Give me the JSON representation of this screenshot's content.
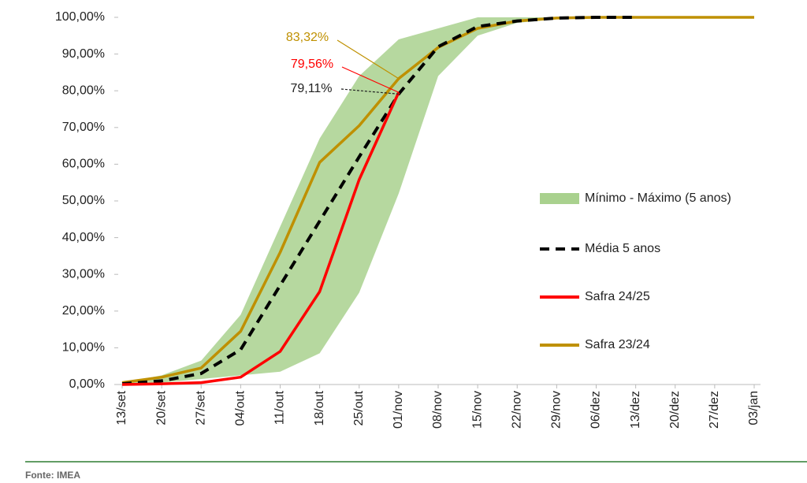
{
  "chart_data": {
    "type": "line",
    "categories": [
      "13/set",
      "20/set",
      "27/set",
      "04/out",
      "11/out",
      "18/out",
      "25/out",
      "01/nov",
      "08/nov",
      "15/nov",
      "22/nov",
      "29/nov",
      "06/dez",
      "13/dez",
      "20/dez",
      "27/dez",
      "03/jan"
    ],
    "ylim": [
      0,
      100
    ],
    "yticks": [
      {
        "value": 0,
        "label": "0,00%"
      },
      {
        "value": 10,
        "label": "10,00%"
      },
      {
        "value": 20,
        "label": "20,00%"
      },
      {
        "value": 30,
        "label": "30,00%"
      },
      {
        "value": 40,
        "label": "40,00%"
      },
      {
        "value": 50,
        "label": "50,00%"
      },
      {
        "value": 60,
        "label": "60,00%"
      },
      {
        "value": 70,
        "label": "70,00%"
      },
      {
        "value": 80,
        "label": "80,00%"
      },
      {
        "value": 90,
        "label": "90,00%"
      },
      {
        "value": 100,
        "label": "100,00%"
      }
    ],
    "band": {
      "name": "Mínimo - Máximo (5 anos)",
      "color": "#a9d18e",
      "low": [
        0,
        0.5,
        1.5,
        2.5,
        3.5,
        8.5,
        25,
        52,
        84,
        95,
        98.5,
        99.5,
        100,
        100,
        null,
        null,
        null
      ],
      "high": [
        0.5,
        2.5,
        6.5,
        19,
        43,
        67,
        84,
        94,
        97,
        100,
        100,
        100,
        100,
        100,
        null,
        null,
        null
      ]
    },
    "series": [
      {
        "name": "Média 5 anos",
        "color": "#000000",
        "dashed": true,
        "values": [
          0.2,
          1,
          3,
          9.5,
          27,
          44.5,
          62,
          79.11,
          92,
          97.5,
          99,
          99.8,
          100,
          100,
          null,
          null,
          null
        ],
        "value_labels": [
          null,
          null,
          null,
          null,
          null,
          null,
          null,
          "79,11%",
          null,
          null,
          null,
          null,
          null,
          null,
          null,
          null,
          null
        ]
      },
      {
        "name": "Safra 24/25",
        "color": "#ff0000",
        "values": [
          0,
          0.2,
          0.5,
          2,
          9,
          25.3,
          55.8,
          79.56,
          null,
          null,
          null,
          null,
          null,
          null,
          null,
          null,
          null
        ],
        "value_labels": [
          null,
          null,
          null,
          null,
          null,
          null,
          null,
          "79,56%",
          null,
          null,
          null,
          null,
          null,
          null,
          null,
          null,
          null
        ]
      },
      {
        "name": "Safra 23/24",
        "color": "#bf9000",
        "values": [
          0.5,
          2,
          4.5,
          14.5,
          36,
          60.5,
          70.5,
          83.32,
          91.8,
          97,
          99,
          99.8,
          100,
          100,
          100,
          100,
          100
        ],
        "value_labels": [
          null,
          null,
          null,
          null,
          null,
          null,
          null,
          "83,32%",
          null,
          null,
          null,
          null,
          null,
          null,
          null,
          null,
          null
        ]
      }
    ],
    "source": "Fonte: IMEA"
  }
}
